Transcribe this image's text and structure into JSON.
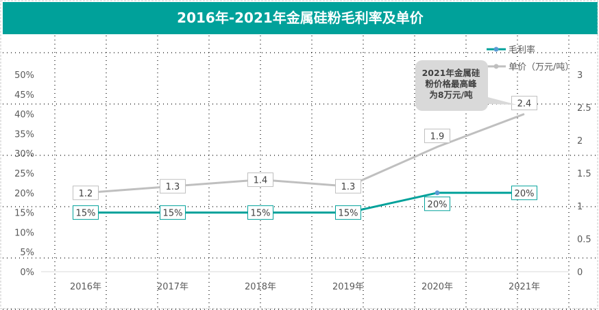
{
  "chart_data": {
    "type": "line",
    "title": "2016年-2021年金属硅粉毛利率及单价",
    "categories": [
      "2016年",
      "2017年",
      "2018年",
      "2019年",
      "2020年",
      "2021年"
    ],
    "series": [
      {
        "name": "毛利率",
        "axis": "left",
        "values": [
          15,
          15,
          15,
          15,
          20,
          20
        ],
        "labels": [
          "15%",
          "15%",
          "15%",
          "15%",
          "20%",
          "20%"
        ],
        "color": "#00a19a",
        "marker_color": "#5b9bd5"
      },
      {
        "name": "单价（万元/吨）",
        "axis": "right",
        "values": [
          1.2,
          1.3,
          1.4,
          1.3,
          1.9,
          2.4
        ],
        "labels": [
          "1.2",
          "1.3",
          "1.4",
          "1.3",
          "1.9",
          "2.4"
        ],
        "color": "#bfbfbf"
      }
    ],
    "left_axis": {
      "range": [
        0,
        50
      ],
      "ticks": [
        "0%",
        "5%",
        "10%",
        "15%",
        "20%",
        "25%",
        "30%",
        "35%",
        "40%",
        "45%",
        "50%"
      ]
    },
    "right_axis": {
      "range": [
        0,
        3
      ],
      "ticks": [
        "0",
        "0.5",
        "1",
        "1.5",
        "2",
        "2.5",
        "3"
      ]
    },
    "legend": "top-right",
    "annotation": {
      "lines": [
        "2021年金属硅",
        "粉价格最高峰",
        "为8万元/吨"
      ],
      "target": "2021年"
    }
  }
}
